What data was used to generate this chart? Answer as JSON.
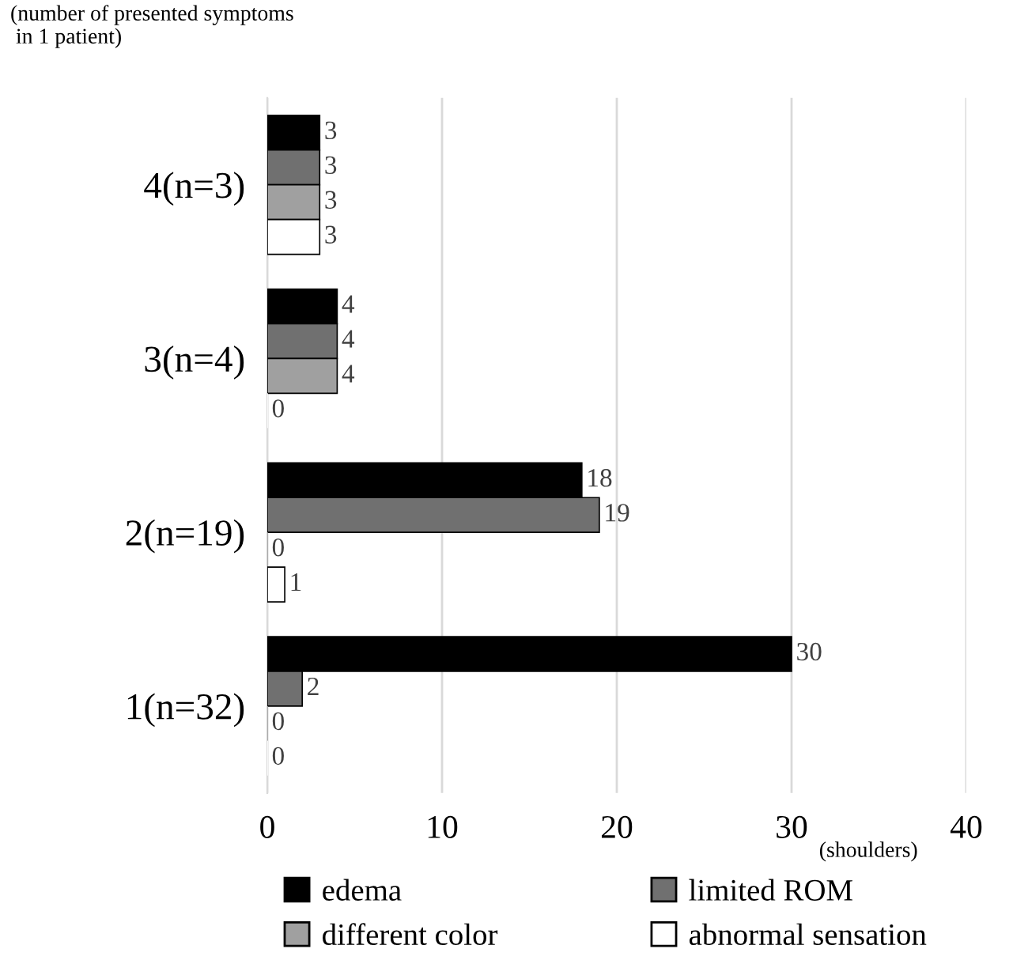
{
  "chart_data": {
    "type": "bar",
    "orientation": "horizontal",
    "ylabel": "(number of presented symptoms\n in 1 patient)",
    "xlabel": "(shoulders)",
    "categories": [
      "4(n=3)",
      "3(n=4)",
      "2(n=19)",
      "1(n=32)"
    ],
    "series": [
      {
        "name": "edema",
        "color": "#000000",
        "values": [
          3,
          4,
          18,
          30
        ]
      },
      {
        "name": "limited ROM",
        "color": "#707070",
        "values": [
          3,
          4,
          19,
          2
        ]
      },
      {
        "name": "different color",
        "color": "#a0a0a0",
        "values": [
          3,
          4,
          0,
          0
        ]
      },
      {
        "name": "abnormal sensation",
        "color": "#ffffff",
        "values": [
          3,
          0,
          1,
          0
        ]
      }
    ],
    "xlim": [
      0,
      40
    ],
    "xticks": [
      0,
      10,
      20,
      30,
      40
    ],
    "grid": "x",
    "legend": "bottom",
    "data_labels": true
  }
}
